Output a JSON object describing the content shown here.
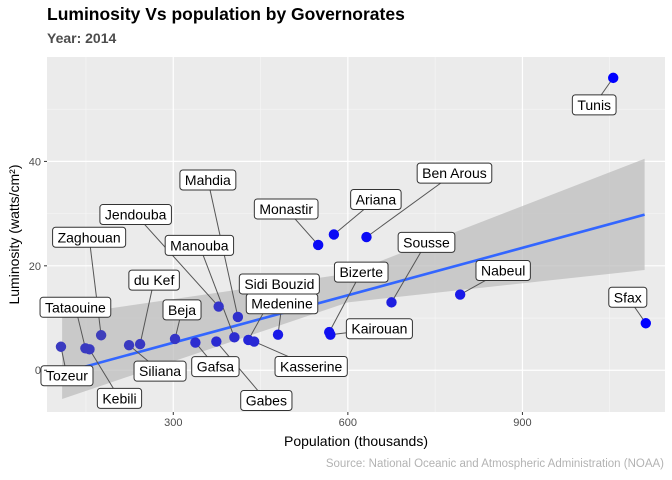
{
  "chart_data": {
    "type": "scatter",
    "title": "Luminosity Vs population by Governorates",
    "subtitle": "Year: 2014",
    "caption": "Source: National Oceanic and Atmospheric Administration (NOAA)",
    "xlabel": "Population (thousands)",
    "ylabel": "Luminosity (watts/cm²)",
    "xlim": [
      83,
      1145
    ],
    "ylim": [
      -8,
      60
    ],
    "x_ticks": [
      300,
      600,
      900
    ],
    "y_ticks": [
      0,
      20,
      40
    ],
    "grid": true,
    "trend_line": {
      "method": "linear",
      "from": [
        109,
        -0.5
      ],
      "to": [
        1110,
        29.8
      ],
      "ci_color": "#bebebe",
      "line_color": "#3366ff"
    },
    "ci_band": {
      "upper": [
        [
          109,
          10.5
        ],
        [
          600,
          18.5
        ],
        [
          1110,
          40.5
        ]
      ],
      "lower": [
        [
          109,
          -5.5
        ],
        [
          600,
          13.0
        ],
        [
          1110,
          19.2
        ]
      ]
    },
    "points": [
      {
        "label": "Tunis",
        "x": 1056,
        "y": 56.0,
        "color": "#0000ff"
      },
      {
        "label": "Sfax",
        "x": 1112,
        "y": 9.0,
        "color": "#0000ff"
      },
      {
        "label": "Nabeul",
        "x": 793,
        "y": 14.5,
        "color": "#1a1ae8"
      },
      {
        "label": "Sousse",
        "x": 675,
        "y": 13.0,
        "color": "#1e1ee0"
      },
      {
        "label": "Ben Arous",
        "x": 632,
        "y": 25.5,
        "color": "#0a0af5"
      },
      {
        "label": "Ariana",
        "x": 576,
        "y": 26.0,
        "color": "#0a0af5"
      },
      {
        "label": "Monastir",
        "x": 549,
        "y": 24.0,
        "color": "#0a0af5"
      },
      {
        "label": "Bizerte",
        "x": 568,
        "y": 7.3,
        "color": "#1010f0"
      },
      {
        "label": "Kairouan",
        "x": 570,
        "y": 6.8,
        "color": "#1010f0"
      },
      {
        "label": "Medenine",
        "x": 480,
        "y": 6.8,
        "color": "#1a1ae8"
      },
      {
        "label": "Sidi Bouzid",
        "x": 429,
        "y": 5.8,
        "color": "#2525d8"
      },
      {
        "label": "Kasserine",
        "x": 439,
        "y": 5.5,
        "color": "#2828d5"
      },
      {
        "label": "Gabes",
        "x": 374,
        "y": 5.5,
        "color": "#2a2ad2"
      },
      {
        "label": "Gafsa",
        "x": 338,
        "y": 5.3,
        "color": "#2d2dd0"
      },
      {
        "label": "Manouba",
        "x": 405,
        "y": 6.3,
        "color": "#2d2dd0"
      },
      {
        "label": "Mahdia",
        "x": 411,
        "y": 10.2,
        "color": "#3030cc"
      },
      {
        "label": "Jendouba",
        "x": 378,
        "y": 12.2,
        "color": "#3333c8"
      },
      {
        "label": "Beja",
        "x": 303,
        "y": 6.0,
        "color": "#3535c6"
      },
      {
        "label": "du Kef",
        "x": 243,
        "y": 5.0,
        "color": "#3838c2"
      },
      {
        "label": "Siliana",
        "x": 224,
        "y": 4.8,
        "color": "#3a3ac0"
      },
      {
        "label": "Zaghouan",
        "x": 176,
        "y": 6.7,
        "color": "#3e3ebb"
      },
      {
        "label": "Tataouine",
        "x": 149,
        "y": 4.2,
        "color": "#3a3ac0"
      },
      {
        "label": "Kebili",
        "x": 156,
        "y": 4.0,
        "color": "#3a3ac0"
      },
      {
        "label": "Tozeur",
        "x": 107,
        "y": 4.5,
        "color": "#3a3ac0"
      }
    ]
  }
}
